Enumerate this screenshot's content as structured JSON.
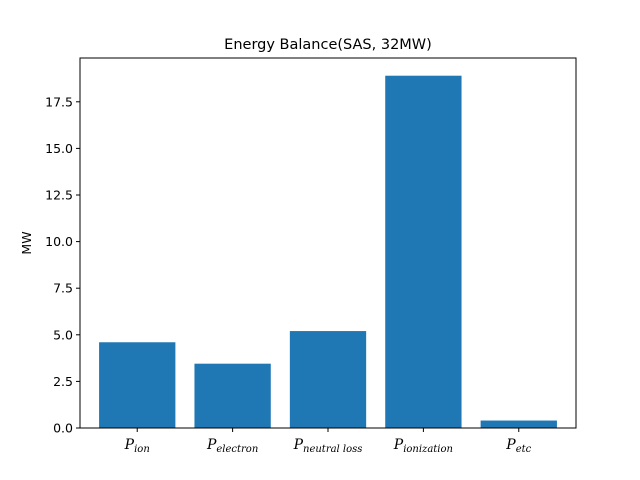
{
  "chart_data": {
    "type": "bar",
    "title": "Energy Balance(SAS, 32MW)",
    "xlabel": "",
    "ylabel": "MW",
    "categories": [
      {
        "main": "P",
        "sub": "ion"
      },
      {
        "main": "P",
        "sub": "electron"
      },
      {
        "main": "P",
        "sub": "neutral loss"
      },
      {
        "main": "P",
        "sub": "ionization"
      },
      {
        "main": "P",
        "sub": "etc"
      }
    ],
    "values": [
      4.6,
      3.45,
      5.2,
      18.9,
      0.4
    ],
    "ylim": [
      0,
      19.85
    ],
    "yticks": [
      "0.0",
      "2.5",
      "5.0",
      "7.5",
      "10.0",
      "12.5",
      "15.0",
      "17.5"
    ],
    "grid": false,
    "bar_color": "#1f77b4"
  }
}
